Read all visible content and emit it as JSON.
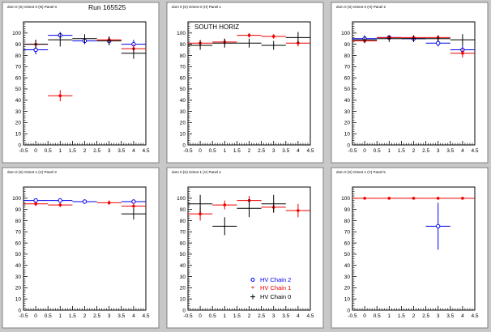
{
  "run_label": "Run 165525",
  "colors": {
    "chain2": "#0000ee",
    "chain1": "#ee0000",
    "chain0": "#000000",
    "pad_bg": "#ffffff",
    "frame_bg": "#c8c8c8"
  },
  "legend": {
    "entries": [
      "HV Chain 2",
      "HV Chain 1",
      "HV Chain 0"
    ],
    "markers": [
      "open-circle",
      "star",
      "cross"
    ]
  },
  "chart_data": [
    {
      "type": "scatter",
      "title": "",
      "pad_title": "dom 0 (S) Orient 0 (N) Panel 0",
      "xlim": [
        -0.5,
        4.5
      ],
      "ylim": [
        0,
        110
      ],
      "xticks": [
        "-0.5",
        "0",
        "0.5",
        "1",
        "1.5",
        "2",
        "2.5",
        "3",
        "3.5",
        "4",
        "4.5"
      ],
      "yticks": [
        "0",
        "10",
        "20",
        "30",
        "40",
        "50",
        "60",
        "70",
        "80",
        "90",
        "100"
      ],
      "annotation": "",
      "series": [
        {
          "name": "HV Chain 2",
          "marker": "open-circle",
          "points": [
            [
              0,
              85,
              4
            ],
            [
              1,
              98,
              3
            ],
            [
              2,
              93,
              3
            ],
            [
              3,
              93,
              3
            ],
            [
              4,
              90,
              4
            ]
          ]
        },
        {
          "name": "HV Chain 1",
          "marker": "star",
          "points": [
            [
              0,
              90,
              4
            ],
            [
              1,
              44,
              5
            ],
            [
              2,
              null,
              0
            ],
            [
              3,
              94,
              3
            ],
            [
              4,
              86,
              4
            ]
          ]
        },
        {
          "name": "HV Chain 0",
          "marker": "cross",
          "points": [
            [
              0,
              90,
              4
            ],
            [
              1,
              94,
              6
            ],
            [
              2,
              95,
              4
            ],
            [
              3,
              93,
              4
            ],
            [
              4,
              82,
              5
            ]
          ]
        }
      ]
    },
    {
      "type": "scatter",
      "title": "",
      "pad_title": "dom 0 (S) Orient 0 (H) Panel 1",
      "xlim": [
        -0.5,
        4.5
      ],
      "ylim": [
        0,
        110
      ],
      "xticks": [
        "-0.5",
        "0",
        "0.5",
        "1",
        "1.5",
        "2",
        "2.5",
        "3",
        "3.5",
        "4",
        "4.5"
      ],
      "yticks": [
        "0",
        "10",
        "20",
        "30",
        "40",
        "50",
        "60",
        "70",
        "80",
        "90",
        "100"
      ],
      "annotation": "SOUTH HORIZ",
      "series": [
        {
          "name": "HV Chain 2",
          "marker": "open-circle",
          "points": []
        },
        {
          "name": "HV Chain 1",
          "marker": "star",
          "points": [
            [
              0,
              91,
              3
            ],
            [
              1,
              92,
              3
            ],
            [
              2,
              98,
              2
            ],
            [
              3,
              97,
              2
            ],
            [
              4,
              91,
              3
            ]
          ]
        },
        {
          "name": "HV Chain 0",
          "marker": "cross",
          "points": [
            [
              0,
              89,
              4
            ],
            [
              1,
              91,
              4
            ],
            [
              2,
              91,
              4
            ],
            [
              3,
              89,
              4
            ],
            [
              4,
              96,
              5
            ]
          ]
        }
      ]
    },
    {
      "type": "scatter",
      "title": "",
      "pad_title": "dom 0 (S) Orient 0 (H) Panel 2",
      "xlim": [
        -0.5,
        4.5
      ],
      "ylim": [
        0,
        110
      ],
      "xticks": [
        "-0.5",
        "0",
        "0.5",
        "1",
        "1.5",
        "2",
        "2.5",
        "3",
        "3.5",
        "4",
        "4.5"
      ],
      "yticks": [
        "0",
        "10",
        "20",
        "30",
        "40",
        "50",
        "60",
        "70",
        "80",
        "90",
        "100"
      ],
      "annotation": "",
      "series": [
        {
          "name": "HV Chain 2",
          "marker": "open-circle",
          "points": [
            [
              0,
              95,
              3
            ],
            [
              1,
              96,
              2
            ],
            [
              2,
              95,
              2
            ],
            [
              3,
              91,
              3
            ],
            [
              4,
              85,
              4
            ]
          ]
        },
        {
          "name": "HV Chain 1",
          "marker": "star",
          "points": [
            [
              0,
              93,
              2
            ],
            [
              1,
              96,
              2
            ],
            [
              2,
              96,
              2
            ],
            [
              3,
              96,
              2
            ],
            [
              4,
              82,
              4
            ]
          ]
        },
        {
          "name": "HV Chain 0",
          "marker": "cross",
          "points": [
            [
              0,
              94,
              3
            ],
            [
              1,
              95,
              3
            ],
            [
              2,
              95,
              3
            ],
            [
              3,
              95,
              3
            ],
            [
              4,
              94,
              5
            ]
          ]
        }
      ]
    },
    {
      "type": "scatter",
      "title": "",
      "pad_title": "dom 0 (S) Orient 1 (V) Panel 3",
      "xlim": [
        -0.5,
        4.5
      ],
      "ylim": [
        0,
        110
      ],
      "xticks": [
        "-0.5",
        "0",
        "0.5",
        "1",
        "1.5",
        "2",
        "2.5",
        "3",
        "3.5",
        "4",
        "4.5"
      ],
      "yticks": [
        "0",
        "10",
        "20",
        "30",
        "40",
        "50",
        "60",
        "70",
        "80",
        "90",
        "100"
      ],
      "annotation": "",
      "series": [
        {
          "name": "HV Chain 2",
          "marker": "open-circle",
          "points": [
            [
              0,
              98,
              2
            ],
            [
              1,
              98,
              2
            ],
            [
              2,
              97,
              2
            ],
            [
              3,
              null,
              0
            ],
            [
              4,
              97,
              2
            ]
          ]
        },
        {
          "name": "HV Chain 1",
          "marker": "star",
          "points": [
            [
              0,
              95,
              2
            ],
            [
              1,
              94,
              2
            ],
            [
              2,
              null,
              0
            ],
            [
              3,
              96,
              2
            ],
            [
              4,
              93,
              3
            ]
          ]
        },
        {
          "name": "HV Chain 0",
          "marker": "cross",
          "points": [
            [
              0,
              null,
              0
            ],
            [
              1,
              null,
              0
            ],
            [
              2,
              null,
              0
            ],
            [
              3,
              null,
              0
            ],
            [
              4,
              86,
              5
            ]
          ]
        }
      ]
    },
    {
      "type": "scatter",
      "title": "",
      "pad_title": "dom 0 (S) Orient 1 (V) Panel 4",
      "xlim": [
        -0.5,
        4.5
      ],
      "ylim": [
        0,
        110
      ],
      "xticks": [
        "-0.5",
        "0",
        "0.5",
        "1",
        "1.5",
        "2",
        "2.5",
        "3",
        "3.5",
        "4",
        "4.5"
      ],
      "yticks": [
        "0",
        "10",
        "20",
        "30",
        "40",
        "50",
        "60",
        "70",
        "80",
        "90",
        "100"
      ],
      "annotation": "",
      "series": [
        {
          "name": "HV Chain 2",
          "marker": "open-circle",
          "points": []
        },
        {
          "name": "HV Chain 1",
          "marker": "star",
          "points": [
            [
              0,
              86,
              6
            ],
            [
              1,
              94,
              4
            ],
            [
              2,
              98,
              4
            ],
            [
              3,
              92,
              4
            ],
            [
              4,
              89,
              6
            ]
          ]
        },
        {
          "name": "HV Chain 0",
          "marker": "cross",
          "points": [
            [
              0,
              95,
              8
            ],
            [
              1,
              75,
              8
            ],
            [
              2,
              91,
              8
            ],
            [
              3,
              95,
              8
            ],
            [
              4,
              null,
              0
            ]
          ]
        }
      ]
    },
    {
      "type": "scatter",
      "title": "",
      "pad_title": "dom 0 (S) Orient 1 (V) Panel 5",
      "xlim": [
        -0.5,
        4.5
      ],
      "ylim": [
        0,
        110
      ],
      "xticks": [
        "-0.5",
        "0",
        "0.5",
        "1",
        "1.5",
        "2",
        "2.5",
        "3",
        "3.5",
        "4",
        "4.5"
      ],
      "yticks": [
        "0",
        "10",
        "20",
        "30",
        "40",
        "50",
        "60",
        "70",
        "80",
        "90",
        "100"
      ],
      "annotation": "",
      "series": [
        {
          "name": "HV Chain 2",
          "marker": "open-circle",
          "points": [
            [
              3,
              75,
              21
            ]
          ]
        },
        {
          "name": "HV Chain 1",
          "marker": "star",
          "points": [
            [
              0,
              100,
              1
            ],
            [
              1,
              100,
              1
            ],
            [
              2,
              100,
              1
            ],
            [
              3,
              100,
              1
            ],
            [
              4,
              100,
              1
            ]
          ]
        },
        {
          "name": "HV Chain 0",
          "marker": "cross",
          "points": []
        }
      ]
    }
  ]
}
